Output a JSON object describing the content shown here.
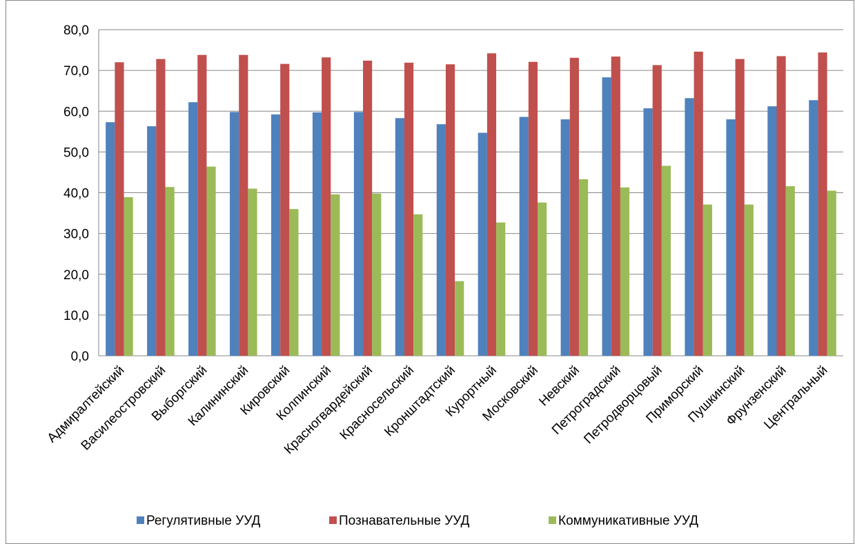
{
  "chart_data": {
    "type": "bar",
    "categories": [
      "Адмиралтейский",
      "Василеостровский",
      "Выборгский",
      "Калининский",
      "Кировский",
      "Колпинский",
      "Красногвардейский",
      "Красносельский",
      "Кронштадтский",
      "Курортный",
      "Московский",
      "Невский",
      "Петроградский",
      "Петродворцовый",
      "Приморский",
      "Пушкинский",
      "Фрунзенский",
      "Центральный"
    ],
    "series": [
      {
        "name": "Регулятивные УУД",
        "color": "#4f81bd",
        "values": [
          57.3,
          56.3,
          62.2,
          59.8,
          59.2,
          59.7,
          59.8,
          58.3,
          56.8,
          54.7,
          58.6,
          58.0,
          68.3,
          60.7,
          63.2,
          58.0,
          61.2,
          62.7
        ]
      },
      {
        "name": "Познавательные УУД",
        "color": "#c0504d",
        "values": [
          72.0,
          72.8,
          73.8,
          73.8,
          71.6,
          73.2,
          72.4,
          71.9,
          71.5,
          74.2,
          72.1,
          73.1,
          73.4,
          71.3,
          74.6,
          72.8,
          73.5,
          74.4
        ]
      },
      {
        "name": "Коммуникативные УУД",
        "color": "#9bbb59",
        "values": [
          38.9,
          41.4,
          46.4,
          41.0,
          36.0,
          39.6,
          39.8,
          34.7,
          18.3,
          32.7,
          37.6,
          43.3,
          41.3,
          46.6,
          37.1,
          37.1,
          41.6,
          40.5
        ]
      }
    ],
    "ylim": [
      0,
      80
    ],
    "yticks": [
      {
        "value": 0,
        "label": "0,0"
      },
      {
        "value": 10,
        "label": "10,0"
      },
      {
        "value": 20,
        "label": "20,0"
      },
      {
        "value": 30,
        "label": "30,0"
      },
      {
        "value": 40,
        "label": "40,0"
      },
      {
        "value": 50,
        "label": "50,0"
      },
      {
        "value": 60,
        "label": "60,0"
      },
      {
        "value": 70,
        "label": "70,0"
      },
      {
        "value": 80,
        "label": "80,0"
      }
    ],
    "grid": true,
    "legend": "bottom"
  }
}
